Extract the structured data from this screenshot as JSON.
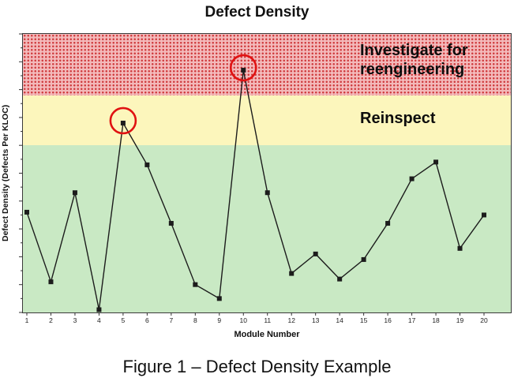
{
  "title": "Defect Density",
  "caption": "Figure 1 – Defect Density Example",
  "colors": {
    "investigate_bg": "#f3b9ba",
    "investigate_dot": "#cf3a3c",
    "reinspect_bg": "#fcf6bc",
    "acceptable_bg": "#c9e9c4",
    "line": "#1c1c1c",
    "highlight_circle": "#e01212"
  },
  "chart_data": {
    "type": "line",
    "title": "Defect Density",
    "xlabel": "Module Number",
    "ylabel": "Defect Density (Defects Per KLOC)",
    "x": [
      1,
      2,
      3,
      4,
      5,
      6,
      7,
      8,
      9,
      10,
      11,
      12,
      13,
      14,
      15,
      16,
      17,
      18,
      19,
      20
    ],
    "values": [
      3.6,
      1.1,
      4.3,
      0.1,
      6.8,
      5.3,
      3.2,
      1.0,
      0.5,
      8.7,
      4.3,
      1.4,
      2.1,
      1.2,
      1.9,
      3.2,
      4.8,
      5.4,
      2.3,
      3.5
    ],
    "ylim": [
      0,
      10
    ],
    "grid": false,
    "legend": "none",
    "marker": "square",
    "zones": [
      {
        "name": "investigate",
        "label": "Investigate for reengineering",
        "from": 7.8,
        "to": 10
      },
      {
        "name": "reinspect",
        "label": "Reinspect",
        "from": 6.0,
        "to": 7.8
      },
      {
        "name": "acceptable",
        "label": "",
        "from": 0,
        "to": 6.0
      }
    ],
    "circled_modules": [
      5,
      10
    ]
  }
}
